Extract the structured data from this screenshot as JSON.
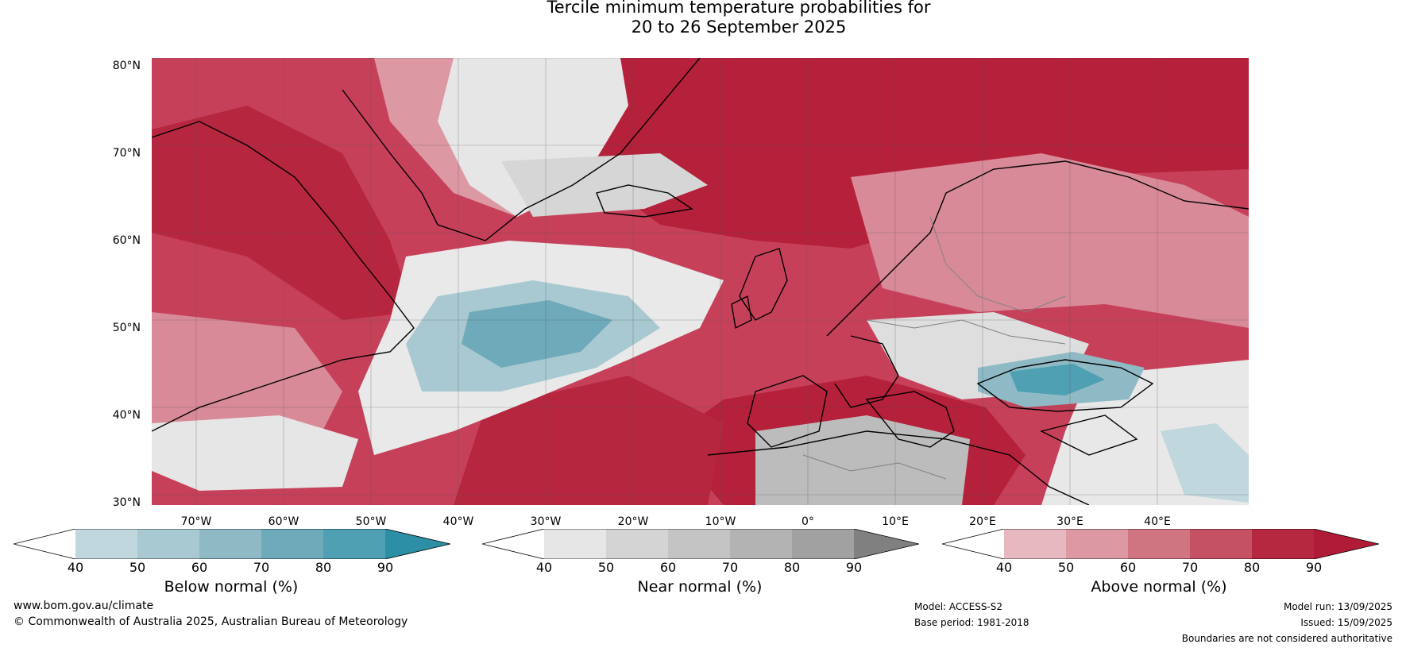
{
  "title_line1": "Tercile minimum temperature probabilities for",
  "title_line2": "20 to 26 September 2025",
  "map": {
    "region": "North Atlantic and Europe",
    "lat_labels": [
      "80°N",
      "70°N",
      "60°N",
      "50°N",
      "40°N",
      "30°N"
    ],
    "lon_labels": [
      "70°W",
      "60°W",
      "50°W",
      "40°W",
      "30°W",
      "20°W",
      "10°W",
      "0°",
      "10°E",
      "20°E",
      "30°E",
      "40°E"
    ],
    "colors": {
      "below_strong": "#3b9eb0",
      "near": "#d8d8d8",
      "above_strong": "#b5203a",
      "coast": "#000000",
      "border": "#808080"
    }
  },
  "legends": [
    {
      "label": "Below normal (%)",
      "ticks": [
        "40",
        "50",
        "60",
        "70",
        "80",
        "90"
      ],
      "colors": [
        "#ffffff",
        "#bfd7dd",
        "#a8c9d1",
        "#8fbac5",
        "#6eaab9",
        "#4fa0b3",
        "#2c8fa5"
      ]
    },
    {
      "label": "Near normal (%)",
      "ticks": [
        "40",
        "50",
        "60",
        "70",
        "80",
        "90"
      ],
      "colors": [
        "#ffffff",
        "#e6e6e6",
        "#d4d4d4",
        "#c4c4c4",
        "#b3b3b3",
        "#a1a1a1",
        "#808080"
      ]
    },
    {
      "label": "Above normal (%)",
      "ticks": [
        "40",
        "50",
        "60",
        "70",
        "80",
        "90"
      ],
      "colors": [
        "#ffffff",
        "#e6b9c1",
        "#dc99a4",
        "#cf7582",
        "#c45264",
        "#b5283f",
        "#b01c38"
      ]
    }
  ],
  "footer": {
    "website": "www.bom.gov.au/climate",
    "copyright": "© Commonwealth of Australia 2025, Australian Bureau of Meteorology",
    "model": "Model: ACCESS-S2",
    "base_period": "Base period: 1981-2018",
    "model_run": "Model run: 13/09/2025",
    "issued": "Issued: 15/09/2025",
    "disclaimer": "Boundaries are not considered authoritative"
  }
}
